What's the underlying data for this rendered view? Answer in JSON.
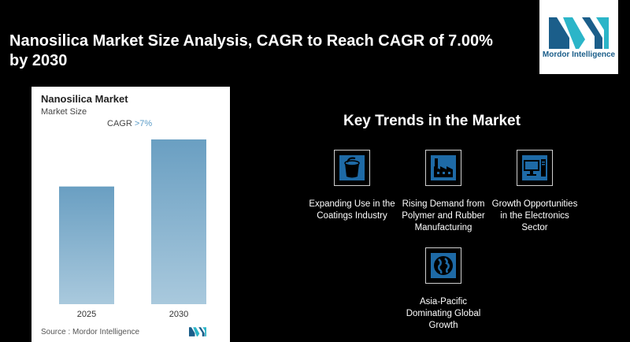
{
  "headline": "Nanosilica Market Size Analysis, CAGR to Reach CAGR of 7.00% by 2030",
  "logo": {
    "brand_text": "Mordor Intelligence"
  },
  "chart_card": {
    "title": "Nanosilica Market",
    "subtitle": "Market Size",
    "cagr_label": "CAGR",
    "cagr_value": ">7%",
    "source": "Source :  Mordor Intelligence"
  },
  "chart_data": {
    "type": "bar",
    "title": "Nanosilica Market",
    "ylabel": "Market Size",
    "categories": [
      "2025",
      "2030"
    ],
    "values": [
      1.0,
      1.4
    ],
    "ylim": [
      0,
      1.5
    ],
    "annotation": "CAGR >7%",
    "bar_color": "#6a9fc2"
  },
  "trends": {
    "title": "Key Trends in the Market",
    "items": [
      {
        "icon": "paint-bucket-icon",
        "label": "Expanding Use in the Coatings Industry"
      },
      {
        "icon": "factory-icon",
        "label": "Rising Demand from Polymer and Rubber Manufacturing"
      },
      {
        "icon": "computer-icon",
        "label": "Growth Opportunities in the Electronics Sector"
      },
      {
        "icon": "globe-icon",
        "label": "Asia-Pacific Dominating Global Growth"
      }
    ]
  },
  "colors": {
    "accent": "#6a9fc2",
    "icon_blue": "#1e6aa6",
    "logo_teal": "#2bb5c8"
  }
}
